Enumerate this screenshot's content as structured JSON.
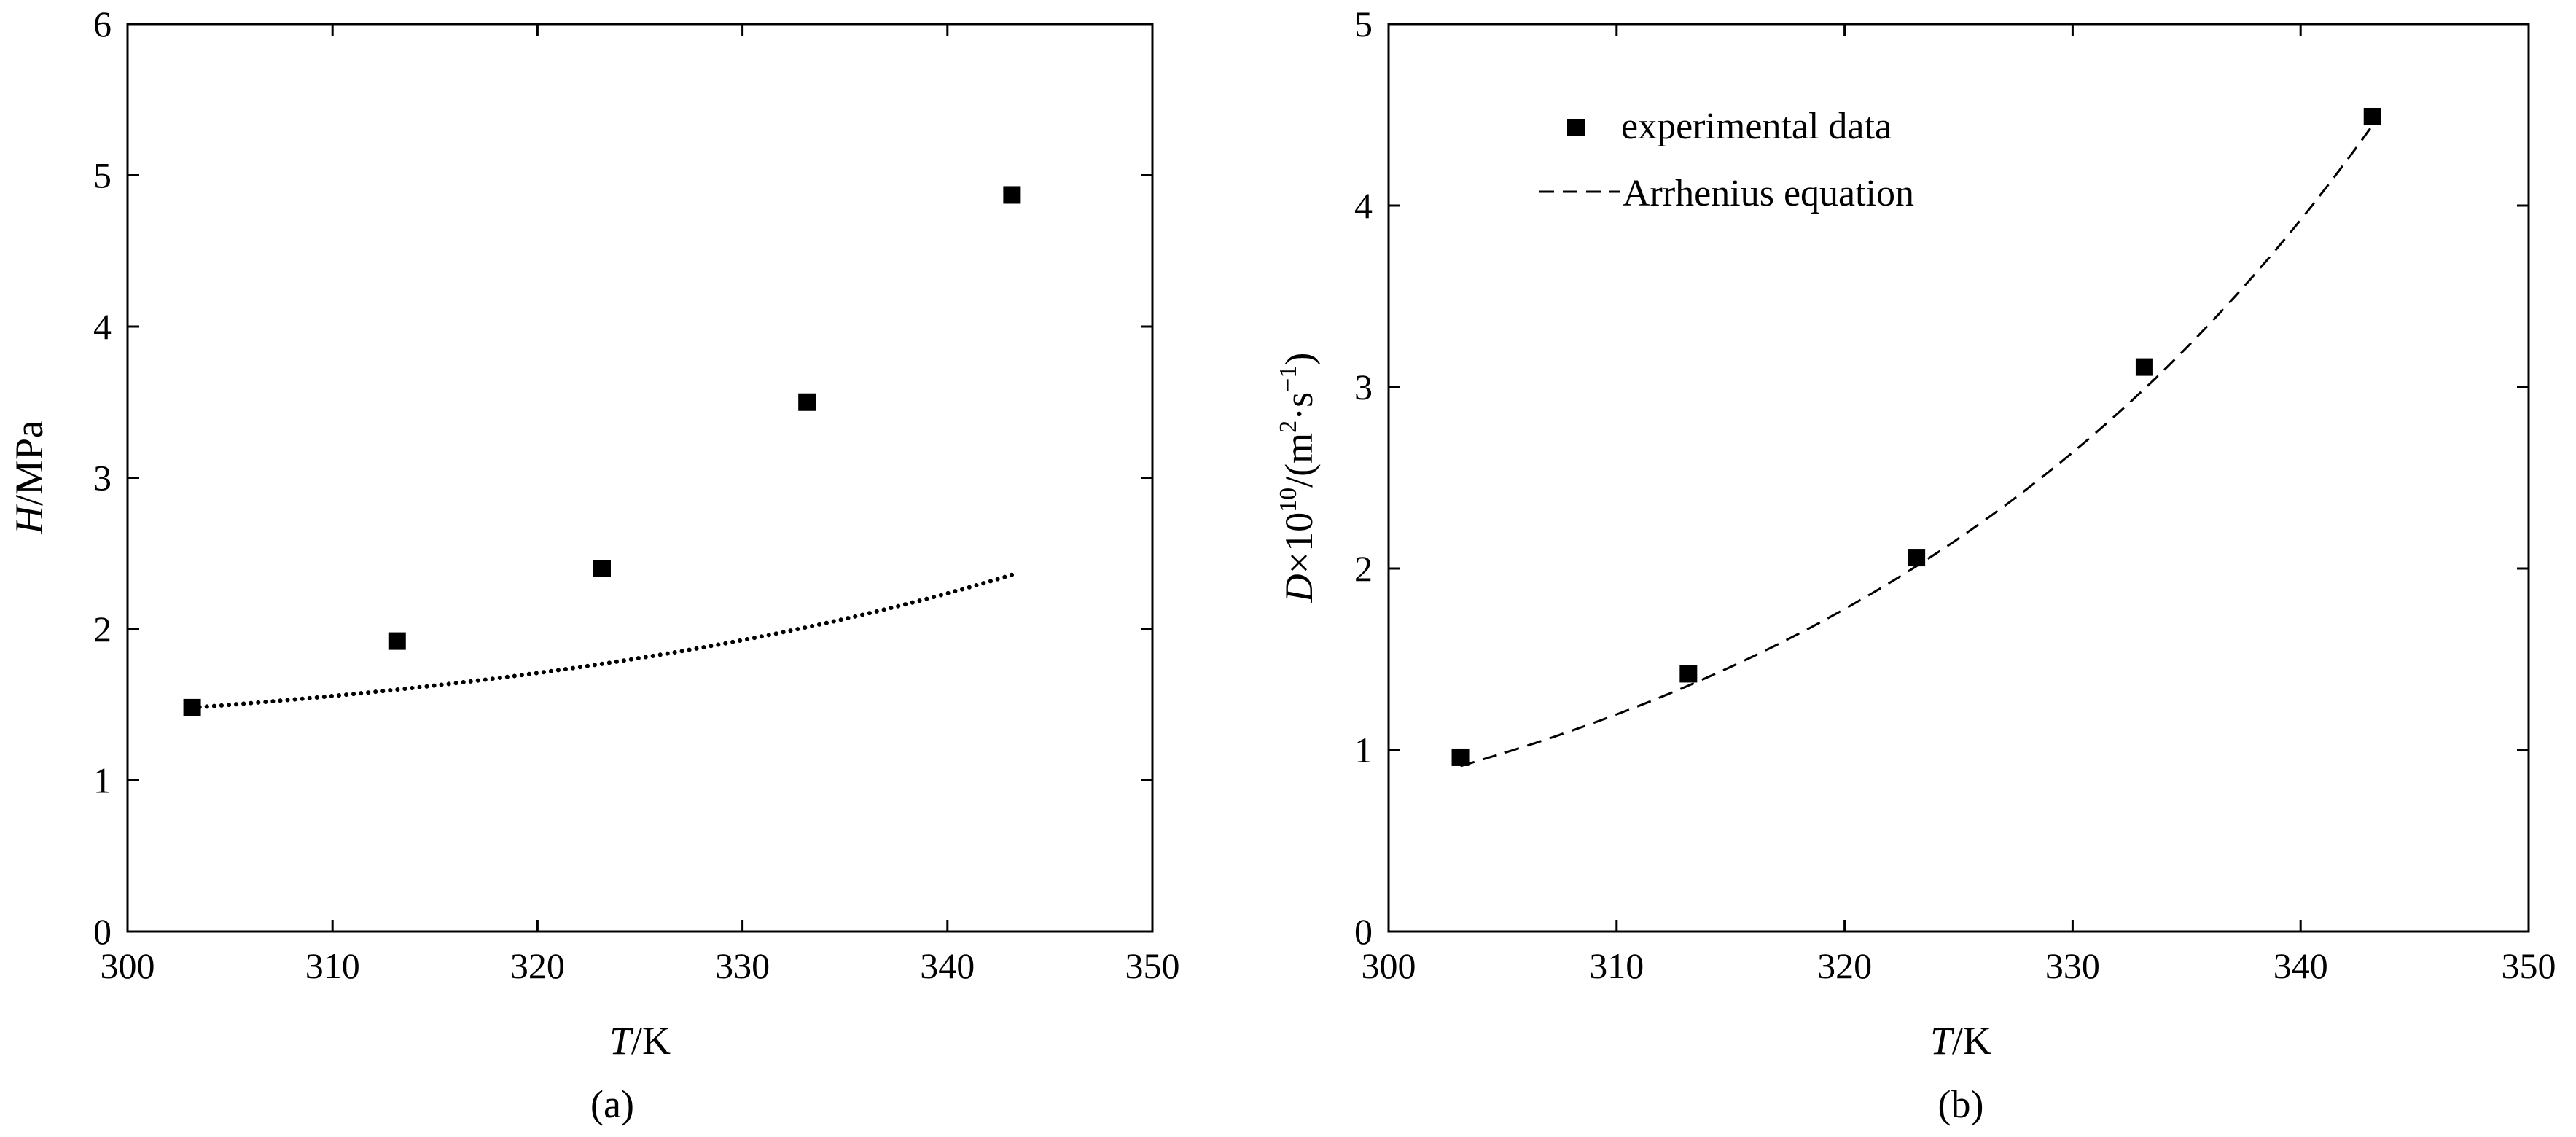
{
  "chart_data": [
    {
      "type": "scatter",
      "panel_label": "(a)",
      "xlabel_var": "T",
      "xlabel_unit": "/K",
      "ylabel_var": "H",
      "ylabel_unit": "/MPa",
      "xlim": [
        300,
        350
      ],
      "ylim": [
        0,
        6
      ],
      "xticks": [
        300,
        310,
        320,
        330,
        340,
        350
      ],
      "yticks": [
        0,
        1,
        2,
        3,
        4,
        5,
        6
      ],
      "grid": false,
      "series": [
        {
          "kind": "markers",
          "marker": "square",
          "x": [
            303.15,
            313.15,
            323.15,
            333.15,
            343.15
          ],
          "y": [
            1.48,
            1.92,
            2.4,
            3.5,
            4.87
          ]
        },
        {
          "kind": "fit-line",
          "style": "dotted",
          "x": [
            303.15,
            343.15
          ],
          "curve": {
            "a": 1.2,
            "b": 0.28,
            "k": 0.0355,
            "x0": 303.15
          }
        }
      ]
    },
    {
      "type": "scatter",
      "panel_label": "(b)",
      "xlabel_var": "T",
      "xlabel_unit": "/K",
      "ylabel_var": "D",
      "ylabel_mid": "×10",
      "ylabel_exp": "10",
      "ylabel_unit_open": "/(m",
      "ylabel_unit_sq": "2",
      "ylabel_unit_mid": "·s",
      "ylabel_unit_exp": "−1",
      "ylabel_unit_close": ")",
      "xlim": [
        300,
        350
      ],
      "ylim": [
        0,
        5
      ],
      "xticks": [
        300,
        310,
        320,
        330,
        340,
        350
      ],
      "yticks": [
        0,
        1,
        2,
        3,
        4,
        5
      ],
      "grid": false,
      "legend": {
        "placement": "top-left",
        "entries": [
          "experimental data",
          "Arrhenius equation"
        ]
      },
      "series": [
        {
          "name": "experimental data",
          "kind": "markers",
          "marker": "square",
          "x": [
            303.15,
            313.15,
            323.15,
            333.15,
            343.15
          ],
          "y": [
            0.96,
            1.42,
            2.06,
            3.11,
            4.49
          ]
        },
        {
          "name": "Arrhenius equation",
          "kind": "fit-line",
          "style": "dashed",
          "x": [
            303.15,
            343.15
          ],
          "curve": {
            "A": 0.912,
            "k": 0.03958,
            "x0": 303.15
          }
        }
      ]
    }
  ]
}
